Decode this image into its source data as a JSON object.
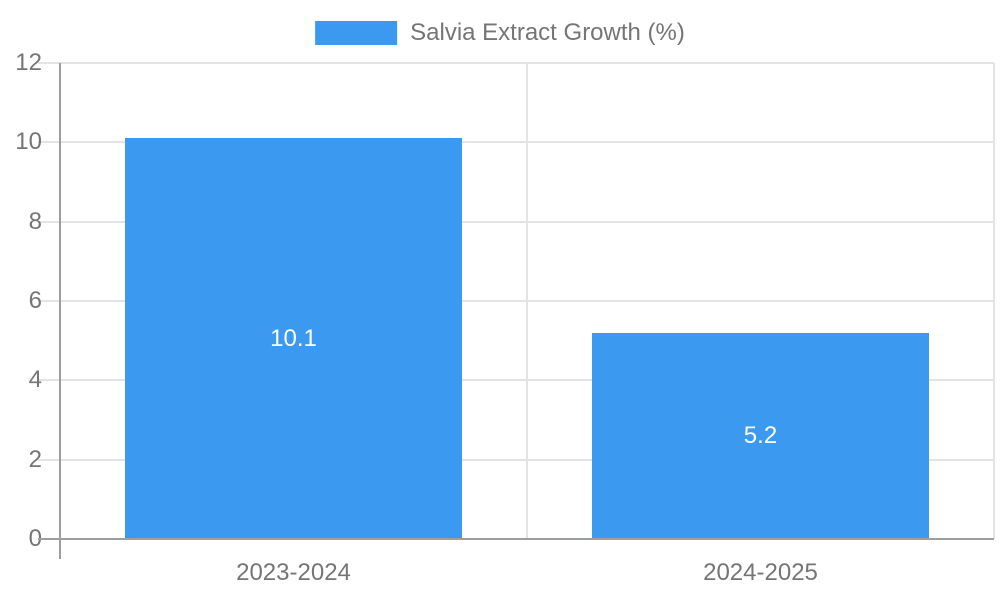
{
  "chart_data": {
    "type": "bar",
    "title": "",
    "series_name": "Salvia Extract Growth (%)",
    "categories": [
      "2023-2024",
      "2024-2025"
    ],
    "values": [
      10.1,
      5.2
    ],
    "value_labels": [
      "10.1",
      "5.2"
    ],
    "xlabel": "",
    "ylabel": "",
    "ylim": [
      0,
      12
    ],
    "y_ticks": [
      "0",
      "2",
      "4",
      "6",
      "8",
      "10",
      "12"
    ],
    "grid": "on",
    "legend_position": "top-center"
  },
  "colors": {
    "background": "#FFFFFF",
    "bar": "#3B99F0",
    "grid_line": "#E3E3E3",
    "axis_line": "#9E9E9E",
    "tick_text": "#757575",
    "value_text": "#FFFFFF"
  }
}
